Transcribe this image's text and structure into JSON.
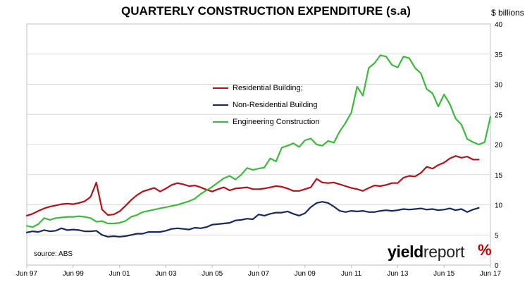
{
  "chart_data": {
    "type": "line",
    "title": "QUARTERLY CONSTRUCTION EXPENDITURE (s.a)",
    "ylabel": "$ billions",
    "ylim": [
      0,
      40
    ],
    "yticks": [
      0,
      5,
      10,
      15,
      20,
      25,
      30,
      35,
      40
    ],
    "xlim": [
      1997.5,
      2017.5
    ],
    "xticks": [
      {
        "label": "Jun 97",
        "value": 1997.5
      },
      {
        "label": "Jun 99",
        "value": 1999.5
      },
      {
        "label": "Jun 01",
        "value": 2001.5
      },
      {
        "label": "Jun 03",
        "value": 2003.5
      },
      {
        "label": "Jun 05",
        "value": 2005.5
      },
      {
        "label": "Jun 07",
        "value": 2007.5
      },
      {
        "label": "Jun 09",
        "value": 2009.5
      },
      {
        "label": "Jun 11",
        "value": 2011.5
      },
      {
        "label": "Jun 13",
        "value": 2013.5
      },
      {
        "label": "Jun 15",
        "value": 2015.5
      },
      {
        "label": "Jun 17",
        "value": 2017.5
      }
    ],
    "grid": "horizontal",
    "legend_position": "center",
    "annotation": "source: ABS",
    "series": [
      {
        "name": "Residential Building;",
        "color": "#b3121a",
        "points": [
          [
            1997.5,
            8.2
          ],
          [
            1997.75,
            8.5
          ],
          [
            1998.0,
            9.0
          ],
          [
            1998.25,
            9.4
          ],
          [
            1998.5,
            9.7
          ],
          [
            1998.75,
            9.9
          ],
          [
            1999.0,
            10.1
          ],
          [
            1999.25,
            10.2
          ],
          [
            1999.5,
            10.1
          ],
          [
            1999.75,
            10.3
          ],
          [
            2000.0,
            10.6
          ],
          [
            2000.25,
            11.3
          ],
          [
            2000.5,
            13.7
          ],
          [
            2000.75,
            9.2
          ],
          [
            2001.0,
            8.3
          ],
          [
            2001.25,
            8.4
          ],
          [
            2001.5,
            8.9
          ],
          [
            2001.75,
            9.8
          ],
          [
            2002.0,
            10.8
          ],
          [
            2002.25,
            11.6
          ],
          [
            2002.5,
            12.2
          ],
          [
            2002.75,
            12.5
          ],
          [
            2003.0,
            12.8
          ],
          [
            2003.25,
            12.2
          ],
          [
            2003.5,
            12.7
          ],
          [
            2003.75,
            13.3
          ],
          [
            2004.0,
            13.6
          ],
          [
            2004.25,
            13.4
          ],
          [
            2004.5,
            13.1
          ],
          [
            2004.75,
            13.2
          ],
          [
            2005.0,
            12.9
          ],
          [
            2005.25,
            12.5
          ],
          [
            2005.5,
            12.2
          ],
          [
            2005.75,
            12.6
          ],
          [
            2006.0,
            12.9
          ],
          [
            2006.25,
            12.4
          ],
          [
            2006.5,
            12.7
          ],
          [
            2006.75,
            12.8
          ],
          [
            2007.0,
            12.9
          ],
          [
            2007.25,
            12.6
          ],
          [
            2007.5,
            12.6
          ],
          [
            2007.75,
            12.7
          ],
          [
            2008.0,
            12.9
          ],
          [
            2008.25,
            13.1
          ],
          [
            2008.5,
            13.0
          ],
          [
            2008.75,
            12.7
          ],
          [
            2009.0,
            12.3
          ],
          [
            2009.25,
            12.3
          ],
          [
            2009.5,
            12.6
          ],
          [
            2009.75,
            12.9
          ],
          [
            2010.0,
            14.3
          ],
          [
            2010.25,
            13.7
          ],
          [
            2010.5,
            13.6
          ],
          [
            2010.75,
            13.7
          ],
          [
            2011.0,
            13.4
          ],
          [
            2011.25,
            13.1
          ],
          [
            2011.5,
            12.8
          ],
          [
            2011.75,
            12.6
          ],
          [
            2012.0,
            12.3
          ],
          [
            2012.25,
            12.8
          ],
          [
            2012.5,
            13.2
          ],
          [
            2012.75,
            13.1
          ],
          [
            2013.0,
            13.3
          ],
          [
            2013.25,
            13.6
          ],
          [
            2013.5,
            13.6
          ],
          [
            2013.75,
            14.5
          ],
          [
            2014.0,
            14.8
          ],
          [
            2014.25,
            14.7
          ],
          [
            2014.5,
            15.3
          ],
          [
            2014.75,
            16.3
          ],
          [
            2015.0,
            16.0
          ],
          [
            2015.25,
            16.6
          ],
          [
            2015.5,
            17.0
          ],
          [
            2015.75,
            17.7
          ],
          [
            2016.0,
            18.1
          ],
          [
            2016.25,
            17.8
          ],
          [
            2016.5,
            18.0
          ],
          [
            2016.75,
            17.5
          ],
          [
            2017.0,
            17.5
          ]
        ]
      },
      {
        "name": "Non-Residential Building",
        "color": "#17285e",
        "points": [
          [
            1997.5,
            5.4
          ],
          [
            1997.75,
            5.6
          ],
          [
            1998.0,
            5.5
          ],
          [
            1998.25,
            5.8
          ],
          [
            1998.5,
            5.6
          ],
          [
            1998.75,
            5.7
          ],
          [
            1999.0,
            6.1
          ],
          [
            1999.25,
            5.8
          ],
          [
            1999.5,
            5.9
          ],
          [
            1999.75,
            5.8
          ],
          [
            2000.0,
            5.6
          ],
          [
            2000.25,
            5.6
          ],
          [
            2000.5,
            5.7
          ],
          [
            2000.75,
            5.0
          ],
          [
            2001.0,
            4.7
          ],
          [
            2001.25,
            4.8
          ],
          [
            2001.5,
            4.7
          ],
          [
            2001.75,
            4.8
          ],
          [
            2002.0,
            5.0
          ],
          [
            2002.25,
            5.2
          ],
          [
            2002.5,
            5.2
          ],
          [
            2002.75,
            5.5
          ],
          [
            2003.0,
            5.5
          ],
          [
            2003.25,
            5.5
          ],
          [
            2003.5,
            5.7
          ],
          [
            2003.75,
            6.0
          ],
          [
            2004.0,
            6.1
          ],
          [
            2004.25,
            6.0
          ],
          [
            2004.5,
            5.9
          ],
          [
            2004.75,
            6.2
          ],
          [
            2005.0,
            6.1
          ],
          [
            2005.25,
            6.3
          ],
          [
            2005.5,
            6.7
          ],
          [
            2005.75,
            6.8
          ],
          [
            2006.0,
            6.9
          ],
          [
            2006.25,
            7.0
          ],
          [
            2006.5,
            7.4
          ],
          [
            2006.75,
            7.5
          ],
          [
            2007.0,
            7.7
          ],
          [
            2007.25,
            7.6
          ],
          [
            2007.5,
            8.4
          ],
          [
            2007.75,
            8.2
          ],
          [
            2008.0,
            8.5
          ],
          [
            2008.25,
            8.7
          ],
          [
            2008.5,
            8.7
          ],
          [
            2008.75,
            8.9
          ],
          [
            2009.0,
            8.5
          ],
          [
            2009.25,
            8.2
          ],
          [
            2009.5,
            8.6
          ],
          [
            2009.75,
            9.6
          ],
          [
            2010.0,
            10.3
          ],
          [
            2010.25,
            10.5
          ],
          [
            2010.5,
            10.3
          ],
          [
            2010.75,
            9.7
          ],
          [
            2011.0,
            9.0
          ],
          [
            2011.25,
            8.8
          ],
          [
            2011.5,
            9.0
          ],
          [
            2011.75,
            8.9
          ],
          [
            2012.0,
            9.0
          ],
          [
            2012.25,
            8.8
          ],
          [
            2012.5,
            8.8
          ],
          [
            2012.75,
            9.0
          ],
          [
            2013.0,
            9.1
          ],
          [
            2013.25,
            9.0
          ],
          [
            2013.5,
            9.1
          ],
          [
            2013.75,
            9.3
          ],
          [
            2014.0,
            9.2
          ],
          [
            2014.25,
            9.3
          ],
          [
            2014.5,
            9.4
          ],
          [
            2014.75,
            9.2
          ],
          [
            2015.0,
            9.3
          ],
          [
            2015.25,
            9.1
          ],
          [
            2015.5,
            9.2
          ],
          [
            2015.75,
            9.4
          ],
          [
            2016.0,
            9.1
          ],
          [
            2016.25,
            9.3
          ],
          [
            2016.5,
            8.8
          ],
          [
            2016.75,
            9.2
          ],
          [
            2017.0,
            9.5
          ]
        ]
      },
      {
        "name": "Engineering Construction",
        "color": "#3cba3c",
        "points": [
          [
            1997.5,
            6.5
          ],
          [
            1997.75,
            6.3
          ],
          [
            1998.0,
            6.8
          ],
          [
            1998.25,
            7.8
          ],
          [
            1998.5,
            7.5
          ],
          [
            1998.75,
            7.8
          ],
          [
            1999.0,
            7.9
          ],
          [
            1999.25,
            8.0
          ],
          [
            1999.5,
            8.0
          ],
          [
            1999.75,
            8.1
          ],
          [
            2000.0,
            8.0
          ],
          [
            2000.25,
            7.8
          ],
          [
            2000.5,
            7.2
          ],
          [
            2000.75,
            7.3
          ],
          [
            2001.0,
            6.9
          ],
          [
            2001.25,
            6.9
          ],
          [
            2001.5,
            7.0
          ],
          [
            2001.75,
            7.3
          ],
          [
            2002.0,
            8.0
          ],
          [
            2002.25,
            8.3
          ],
          [
            2002.5,
            8.8
          ],
          [
            2002.75,
            9.0
          ],
          [
            2003.0,
            9.2
          ],
          [
            2003.25,
            9.4
          ],
          [
            2003.5,
            9.6
          ],
          [
            2003.75,
            9.8
          ],
          [
            2004.0,
            10.0
          ],
          [
            2004.25,
            10.3
          ],
          [
            2004.5,
            10.6
          ],
          [
            2004.75,
            11.0
          ],
          [
            2005.0,
            11.8
          ],
          [
            2005.25,
            12.4
          ],
          [
            2005.5,
            13.0
          ],
          [
            2005.75,
            13.7
          ],
          [
            2006.0,
            14.4
          ],
          [
            2006.25,
            14.8
          ],
          [
            2006.5,
            14.2
          ],
          [
            2006.75,
            15.0
          ],
          [
            2007.0,
            16.1
          ],
          [
            2007.25,
            15.8
          ],
          [
            2007.5,
            16.0
          ],
          [
            2007.75,
            16.2
          ],
          [
            2008.0,
            17.7
          ],
          [
            2008.25,
            17.2
          ],
          [
            2008.5,
            19.5
          ],
          [
            2008.75,
            19.8
          ],
          [
            2009.0,
            20.2
          ],
          [
            2009.25,
            19.6
          ],
          [
            2009.5,
            20.7
          ],
          [
            2009.75,
            21.0
          ],
          [
            2010.0,
            20.0
          ],
          [
            2010.25,
            19.8
          ],
          [
            2010.5,
            20.6
          ],
          [
            2010.75,
            20.3
          ],
          [
            2011.0,
            22.2
          ],
          [
            2011.25,
            23.6
          ],
          [
            2011.5,
            25.3
          ],
          [
            2011.75,
            29.6
          ],
          [
            2012.0,
            28.1
          ],
          [
            2012.25,
            32.7
          ],
          [
            2012.5,
            33.5
          ],
          [
            2012.75,
            34.8
          ],
          [
            2013.0,
            34.6
          ],
          [
            2013.25,
            33.2
          ],
          [
            2013.5,
            32.8
          ],
          [
            2013.75,
            34.6
          ],
          [
            2014.0,
            34.3
          ],
          [
            2014.25,
            32.7
          ],
          [
            2014.5,
            31.8
          ],
          [
            2014.75,
            29.2
          ],
          [
            2015.0,
            28.5
          ],
          [
            2015.25,
            26.3
          ],
          [
            2015.5,
            28.3
          ],
          [
            2015.75,
            26.7
          ],
          [
            2016.0,
            24.3
          ],
          [
            2016.25,
            23.3
          ],
          [
            2016.5,
            20.9
          ],
          [
            2016.75,
            20.4
          ],
          [
            2017.0,
            20.0
          ],
          [
            2017.25,
            20.4
          ],
          [
            2017.5,
            24.6
          ]
        ]
      }
    ]
  },
  "branding": {
    "logo_bold": "yield",
    "logo_light": "report",
    "logo_mark": "%"
  }
}
